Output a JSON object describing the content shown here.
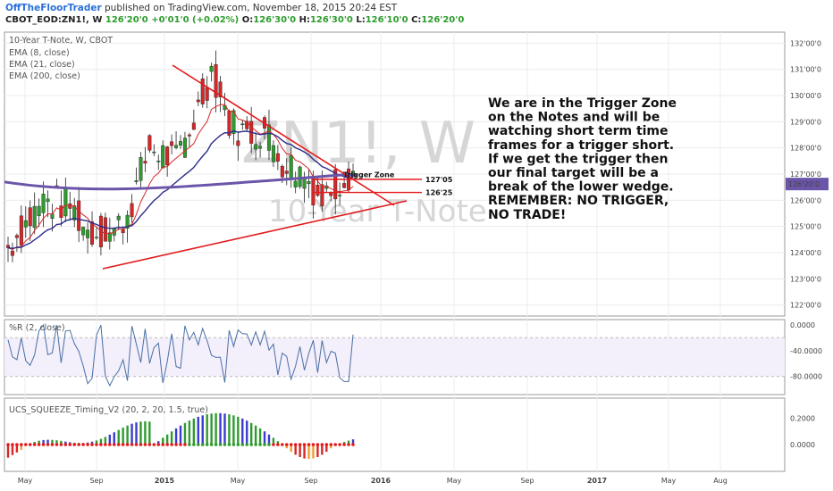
{
  "header": {
    "brand": "OffTheFloorTrader",
    "published": "published on TradingView.com, November 18, 2015 20:24 EST",
    "symbol": "CBOT_EOD:ZN1!, W",
    "quote_last": "126'20'0",
    "quote_change": "+0'01'0 (+0.02%)",
    "ohlc": {
      "o_label": "O:",
      "o": "126'30'0",
      "h_label": "H:",
      "h": "126'30'0",
      "l_label": "L:",
      "l": "126'10'0",
      "c_label": "C:",
      "c": "126'20'0"
    }
  },
  "colors": {
    "up": "#2e9b2e",
    "down": "#d62728",
    "trend": "#e31a1c",
    "ema8": "#d62728",
    "ema21": "#2b2b8c",
    "ema200": "#6a55a8",
    "wr": "#4a6fa5",
    "accent": "#2a6fd6"
  },
  "chart_data": [
    {
      "type": "candlestick",
      "title": "10-Year T-Note, W, CBOT",
      "watermark": "ZN1!, W",
      "watermark_sub": "10-Year T-Note",
      "legend": [
        "EMA (8, close)",
        "EMA (21, close)",
        "EMA (200, close)"
      ],
      "x_ticks": [
        "May",
        "Sep",
        "2015",
        "May",
        "Sep",
        "2016",
        "May",
        "Sep",
        "2017",
        "May",
        "Aug"
      ],
      "y_ticks": [
        "132'00'0",
        "131'00'0",
        "130'00'0",
        "129'00'0",
        "128'00'0",
        "127'00'0",
        "126'00'0",
        "125'00'0",
        "124'00'0",
        "123'00'0",
        "122'00'0"
      ],
      "ylim": [
        122,
        132
      ],
      "last_price": "126'20'0",
      "weeks_2014_2015": 79,
      "close_path_anchors": [
        [
          0,
          124.2
        ],
        [
          8,
          126
        ],
        [
          14,
          125.8
        ],
        [
          18,
          124.8
        ],
        [
          24,
          124.8
        ],
        [
          27,
          125.5
        ],
        [
          32,
          128
        ],
        [
          38,
          127.5
        ],
        [
          43,
          129.5
        ],
        [
          46,
          131
        ],
        [
          50,
          129
        ],
        [
          54,
          128.5
        ],
        [
          58,
          128.7
        ],
        [
          62,
          127.5
        ],
        [
          67,
          127
        ],
        [
          71,
          126
        ],
        [
          73,
          126.5
        ],
        [
          78,
          127.2
        ],
        [
          82,
          127.5
        ],
        [
          86,
          129
        ],
        [
          90,
          128.5
        ],
        [
          94,
          128.2
        ],
        [
          98,
          127
        ],
        [
          99,
          126.2
        ]
      ],
      "candles_note": "weekly bars May 2014 - Nov 2015",
      "trend_upper": [
        [
          193,
          73
        ],
        [
          441,
          230
        ]
      ],
      "trend_lower": [
        [
          115,
          301
        ],
        [
          455,
          225
        ]
      ],
      "levels": [
        {
          "label": "127'05",
          "y": 126.8
        },
        {
          "label": "126'25",
          "y": 126.3
        }
      ],
      "zone_label": "Trigger Zone",
      "annotation": [
        "We are in the Trigger Zone",
        "on the Notes and will be",
        "watching short term time",
        "frames for a trigger short.",
        "If we get the trigger then",
        "our final target will be a",
        "break of the lower wedge.",
        "REMEMBER:  NO TRIGGER,",
        "NO TRADE!"
      ]
    },
    {
      "type": "line",
      "title": "%R (2, close)",
      "y_ticks": [
        "0.0000",
        "-40.0000",
        "-80.0000"
      ],
      "ylim": [
        -100,
        0
      ],
      "band": [
        -80,
        -20
      ]
    },
    {
      "type": "bar",
      "title": "UCS_SQUEEZE_Timing_V2 (20, 2, 20, 1.5, true)",
      "y_ticks": [
        "0.2000",
        "0.0000"
      ],
      "ylim": [
        -0.15,
        0.3
      ]
    }
  ]
}
